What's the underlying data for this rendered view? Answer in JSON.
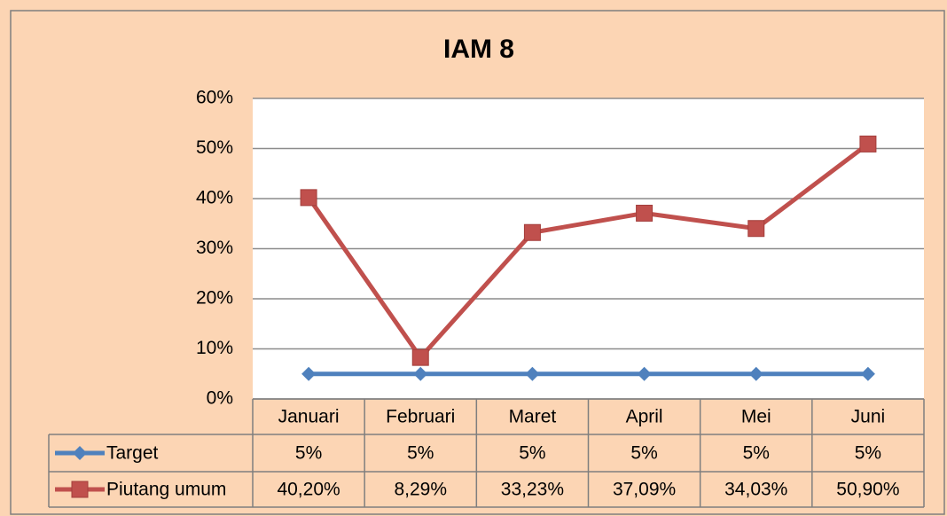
{
  "chart_data": {
    "type": "line",
    "title": "IAM 8",
    "categories": [
      "Januari",
      "Februari",
      "Maret",
      "April",
      "Mei",
      "Juni"
    ],
    "series": [
      {
        "name": "Target",
        "color": "#4f81bd",
        "marker": "diamond",
        "values": [
          5,
          5,
          5,
          5,
          5,
          5
        ],
        "value_labels": [
          "5%",
          "5%",
          "5%",
          "5%",
          "5%",
          "5%"
        ]
      },
      {
        "name": "Piutang umum",
        "color": "#c0504d",
        "marker": "square",
        "values": [
          40.2,
          8.29,
          33.23,
          37.09,
          34.03,
          50.9
        ],
        "value_labels": [
          "40,20%",
          "8,29%",
          "33,23%",
          "37,09%",
          "34,03%",
          "50,90%"
        ]
      }
    ],
    "ylim": [
      0,
      60
    ],
    "yticks": [
      {
        "value": 0,
        "label": "0%"
      },
      {
        "value": 10,
        "label": "10%"
      },
      {
        "value": 20,
        "label": "20%"
      },
      {
        "value": 30,
        "label": "30%"
      },
      {
        "value": 40,
        "label": "40%"
      },
      {
        "value": 50,
        "label": "50%"
      },
      {
        "value": 60,
        "label": "60%"
      }
    ],
    "grid": true
  }
}
